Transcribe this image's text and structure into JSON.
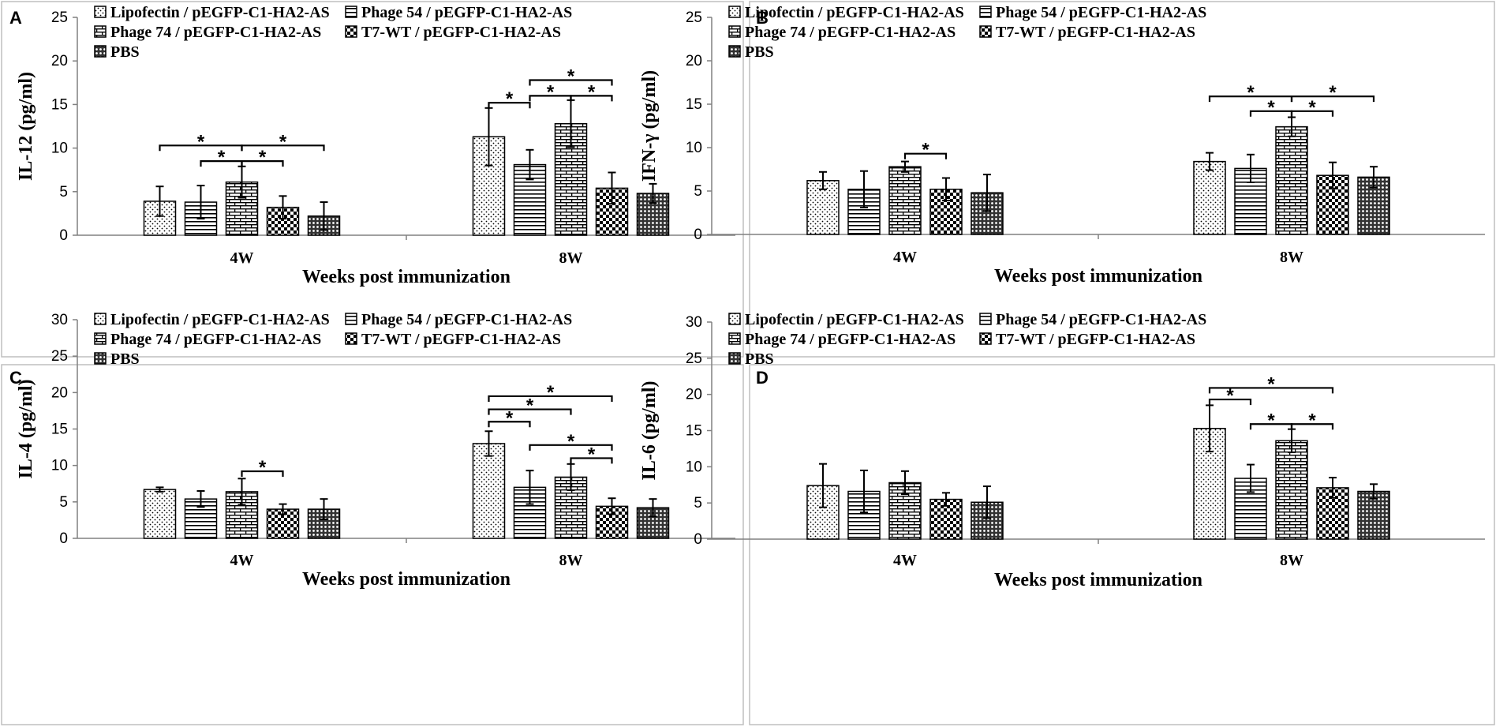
{
  "figure": {
    "legend_entries": [
      "Lipofectin / pEGFP-C1-HA2-AS",
      "Phage 54 / pEGFP-C1-HA2-AS",
      "Phage 74 / pEGFP-C1-HA2-AS",
      "T7-WT / pEGFP-C1-HA2-AS",
      "PBS"
    ]
  },
  "chart_data": [
    {
      "panel": "A",
      "type": "bar",
      "ylabel": "IL-12 (pg/ml)",
      "xlabel": "Weeks post immunization",
      "categories": [
        "4W",
        "8W"
      ],
      "ylim": [
        0,
        25
      ],
      "yticks": [
        0,
        5,
        10,
        15,
        20,
        25
      ],
      "series": [
        {
          "name": "Lipofectin / pEGFP-C1-HA2-AS",
          "values": [
            3.9,
            11.3
          ],
          "errors": [
            1.7,
            3.3
          ]
        },
        {
          "name": "Phage 54 / pEGFP-C1-HA2-AS",
          "values": [
            3.8,
            8.1
          ],
          "errors": [
            1.9,
            1.7
          ]
        },
        {
          "name": "Phage 74 / pEGFP-C1-HA2-AS",
          "values": [
            6.1,
            12.8
          ],
          "errors": [
            1.8,
            2.7
          ]
        },
        {
          "name": "T7-WT / pEGFP-C1-HA2-AS",
          "values": [
            3.2,
            5.4
          ],
          "errors": [
            1.3,
            1.8
          ]
        },
        {
          "name": "PBS",
          "values": [
            2.2,
            4.8
          ],
          "errors": [
            1.6,
            1.1
          ]
        }
      ],
      "significance": [
        {
          "category": "4W",
          "from": 0,
          "to": 2,
          "level": 10.3,
          "label": "*"
        },
        {
          "category": "4W",
          "from": 2,
          "to": 4,
          "level": 10.3,
          "label": "*"
        },
        {
          "category": "4W",
          "from": 1,
          "to": 2,
          "level": 8.5,
          "label": "*"
        },
        {
          "category": "4W",
          "from": 2,
          "to": 3,
          "level": 8.5,
          "label": "*"
        },
        {
          "category": "8W",
          "from": 1,
          "to": 3,
          "level": 17.8,
          "label": "*"
        },
        {
          "category": "8W",
          "from": 0,
          "to": 1,
          "level": 15.2,
          "label": "*"
        },
        {
          "category": "8W",
          "from": 1,
          "to": 2,
          "level": 16.0,
          "label": "*"
        },
        {
          "category": "8W",
          "from": 2,
          "to": 3,
          "level": 16.0,
          "label": "*"
        }
      ]
    },
    {
      "panel": "B",
      "type": "bar",
      "ylabel": "IFN-γ (pg/ml)",
      "xlabel": "Weeks post immunization",
      "categories": [
        "4W",
        "8W"
      ],
      "ylim": [
        0,
        25
      ],
      "yticks": [
        0,
        5,
        10,
        15,
        20,
        25
      ],
      "series": [
        {
          "name": "Lipofectin / pEGFP-C1-HA2-AS",
          "values": [
            6.2,
            8.4
          ],
          "errors": [
            1.0,
            1.0
          ]
        },
        {
          "name": "Phage 54 / pEGFP-C1-HA2-AS",
          "values": [
            5.2,
            7.6
          ],
          "errors": [
            2.1,
            1.6
          ]
        },
        {
          "name": "Phage 74 / pEGFP-C1-HA2-AS",
          "values": [
            7.8,
            12.4
          ],
          "errors": [
            0.6,
            1.1
          ]
        },
        {
          "name": "T7-WT / pEGFP-C1-HA2-AS",
          "values": [
            5.2,
            6.8
          ],
          "errors": [
            1.3,
            1.5
          ]
        },
        {
          "name": "PBS",
          "values": [
            4.8,
            6.6
          ],
          "errors": [
            2.1,
            1.2
          ]
        }
      ],
      "significance": [
        {
          "category": "4W",
          "from": 2,
          "to": 3,
          "level": 9.3,
          "label": "*"
        },
        {
          "category": "8W",
          "from": 0,
          "to": 2,
          "level": 15.9,
          "label": "*"
        },
        {
          "category": "8W",
          "from": 2,
          "to": 4,
          "level": 15.9,
          "label": "*"
        },
        {
          "category": "8W",
          "from": 1,
          "to": 2,
          "level": 14.2,
          "label": "*"
        },
        {
          "category": "8W",
          "from": 2,
          "to": 3,
          "level": 14.2,
          "label": "*"
        }
      ]
    },
    {
      "panel": "C",
      "type": "bar",
      "ylabel": "IL-4 (pg/ml)",
      "xlabel": "Weeks post immunization",
      "categories": [
        "4W",
        "8W"
      ],
      "ylim": [
        0,
        30
      ],
      "yticks": [
        0,
        5,
        10,
        15,
        20,
        25,
        30
      ],
      "series": [
        {
          "name": "Lipofectin / pEGFP-C1-HA2-AS",
          "values": [
            6.7,
            13.0
          ],
          "errors": [
            0.3,
            1.7
          ]
        },
        {
          "name": "Phage 54 / pEGFP-C1-HA2-AS",
          "values": [
            5.4,
            7.0
          ],
          "errors": [
            1.1,
            2.3
          ]
        },
        {
          "name": "Phage 74 / pEGFP-C1-HA2-AS",
          "values": [
            6.4,
            8.4
          ],
          "errors": [
            1.8,
            1.8
          ]
        },
        {
          "name": "T7-WT / pEGFP-C1-HA2-AS",
          "values": [
            4.0,
            4.4
          ],
          "errors": [
            0.7,
            1.1
          ]
        },
        {
          "name": "PBS",
          "values": [
            4.0,
            4.2
          ],
          "errors": [
            1.4,
            1.2
          ]
        }
      ],
      "significance": [
        {
          "category": "4W",
          "from": 2,
          "to": 3,
          "level": 9.2,
          "label": "*"
        },
        {
          "category": "8W",
          "from": 0,
          "to": 3,
          "level": 19.5,
          "label": "*"
        },
        {
          "category": "8W",
          "from": 0,
          "to": 2,
          "level": 17.7,
          "label": "*"
        },
        {
          "category": "8W",
          "from": 0,
          "to": 1,
          "level": 16.0,
          "label": "*"
        },
        {
          "category": "8W",
          "from": 1,
          "to": 3,
          "level": 12.8,
          "label": "*"
        },
        {
          "category": "8W",
          "from": 2,
          "to": 3,
          "level": 11.0,
          "label": "*"
        }
      ]
    },
    {
      "panel": "D",
      "type": "bar",
      "ylabel": "IL-6 (pg/ml)",
      "xlabel": "Weeks post immunization",
      "categories": [
        "4W",
        "8W"
      ],
      "ylim": [
        0,
        30
      ],
      "yticks": [
        0,
        5,
        10,
        15,
        20,
        25,
        30
      ],
      "series": [
        {
          "name": "Lipofectin / pEGFP-C1-HA2-AS",
          "values": [
            7.4,
            15.3
          ],
          "errors": [
            3.0,
            3.2
          ]
        },
        {
          "name": "Phage 54 / pEGFP-C1-HA2-AS",
          "values": [
            6.6,
            8.4
          ],
          "errors": [
            2.9,
            1.9
          ]
        },
        {
          "name": "Phage 74 / pEGFP-C1-HA2-AS",
          "values": [
            7.8,
            13.6
          ],
          "errors": [
            1.6,
            1.6
          ]
        },
        {
          "name": "T7-WT / pEGFP-C1-HA2-AS",
          "values": [
            5.5,
            7.1
          ],
          "errors": [
            0.9,
            1.4
          ]
        },
        {
          "name": "PBS",
          "values": [
            5.1,
            6.6
          ],
          "errors": [
            2.2,
            1.0
          ]
        }
      ],
      "significance": [
        {
          "category": "8W",
          "from": 0,
          "to": 3,
          "level": 20.9,
          "label": "*"
        },
        {
          "category": "8W",
          "from": 0,
          "to": 1,
          "level": 19.3,
          "label": "*"
        },
        {
          "category": "8W",
          "from": 1,
          "to": 2,
          "level": 15.9,
          "label": "*"
        },
        {
          "category": "8W",
          "from": 2,
          "to": 3,
          "level": 15.9,
          "label": "*"
        }
      ]
    }
  ]
}
